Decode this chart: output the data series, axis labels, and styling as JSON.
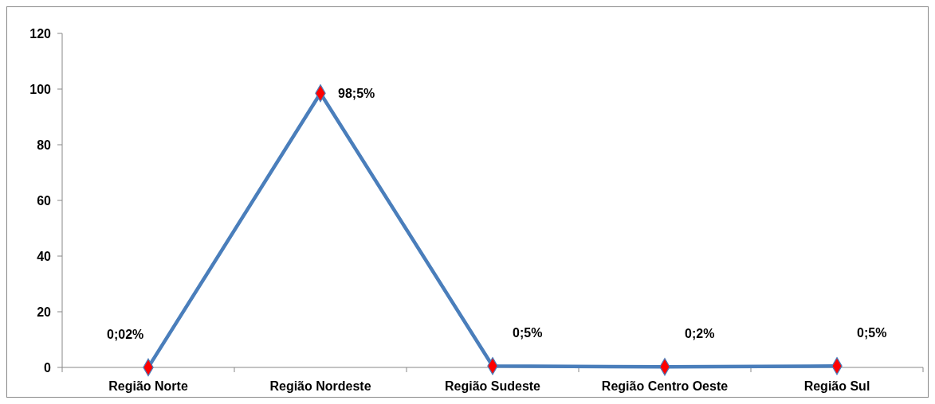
{
  "chart_data": {
    "type": "line",
    "categories": [
      "Região Norte",
      "Região Nordeste",
      "Região Sudeste",
      "Região Centro Oeste",
      "Região Sul"
    ],
    "series": [
      {
        "color": "#4a7ebb",
        "values": [
          0.02,
          98.5,
          0.5,
          0.2,
          0.5
        ],
        "value_labels": [
          "0;02%",
          "98;5%",
          "0;5%",
          "0;2%",
          "0;5%"
        ]
      }
    ],
    "ylim": [
      0,
      120
    ],
    "yticks": [
      0,
      20,
      40,
      60,
      80,
      100,
      120
    ],
    "grid": false,
    "marker": "diamond",
    "line_style": "solid"
  }
}
